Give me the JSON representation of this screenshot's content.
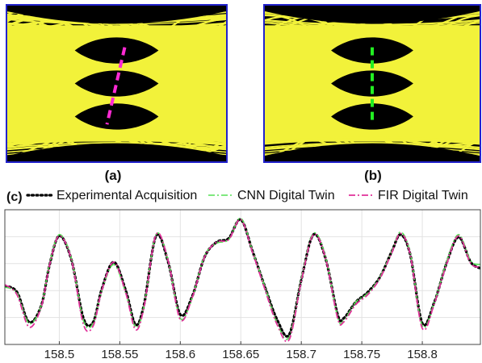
{
  "figure": {
    "panel_a_label": "(a)",
    "panel_b_label": "(b)",
    "panel_c_label": "(c)"
  },
  "colors": {
    "eye_trace": "#f2f23a",
    "eye_background": "#000000",
    "eye_frame": "#2222cc",
    "experimental": "#000000",
    "cnn": "#55e055",
    "fir": "#e0309a",
    "marker_a": "#ff2ad4",
    "marker_b": "#22ee22"
  },
  "chart_data": [
    {
      "type": "eye-diagram",
      "panel": "(a)",
      "openings": 3,
      "marker_style": "tilted dashed line"
    },
    {
      "type": "eye-diagram",
      "panel": "(b)",
      "openings": 3,
      "marker_style": "vertical dashed line"
    },
    {
      "type": "line",
      "panel": "(c)",
      "title": "",
      "xlabel": "",
      "ylabel": "",
      "xlim": [
        158.455,
        158.848
      ],
      "ylim": [
        0.0,
        1.0
      ],
      "xticks": [
        158.5,
        158.55,
        158.6,
        158.65,
        158.7,
        158.75,
        158.8
      ],
      "xtick_labels": [
        "158.5",
        "158.55",
        "158.6",
        "158.65",
        "158.7",
        "158.75",
        "158.8"
      ],
      "grid": true,
      "legend_position": "top",
      "series": [
        {
          "name": "Experimental Acquisition",
          "style": "dotted",
          "x": [
            158.455,
            158.465,
            158.475,
            158.485,
            158.492,
            158.5,
            158.51,
            158.52,
            158.528,
            158.535,
            158.545,
            158.555,
            158.563,
            158.57,
            158.58,
            158.59,
            158.6,
            158.61,
            158.62,
            158.63,
            158.64,
            158.65,
            158.66,
            158.67,
            158.68,
            158.69,
            158.7,
            158.71,
            158.72,
            158.73,
            158.735,
            158.745,
            158.755,
            158.765,
            158.775,
            158.782,
            158.79,
            158.8,
            158.81,
            158.82,
            158.83,
            158.84,
            158.848
          ],
          "y": [
            0.43,
            0.38,
            0.14,
            0.27,
            0.6,
            0.83,
            0.64,
            0.17,
            0.14,
            0.4,
            0.62,
            0.39,
            0.12,
            0.28,
            0.83,
            0.62,
            0.2,
            0.35,
            0.66,
            0.78,
            0.81,
            0.96,
            0.7,
            0.42,
            0.16,
            0.04,
            0.48,
            0.84,
            0.65,
            0.2,
            0.17,
            0.3,
            0.38,
            0.5,
            0.71,
            0.84,
            0.68,
            0.13,
            0.3,
            0.61,
            0.82,
            0.62,
            0.57
          ]
        },
        {
          "name": "CNN Digital Twin",
          "style": "dash-dot",
          "x": [
            158.455,
            158.465,
            158.475,
            158.485,
            158.492,
            158.5,
            158.51,
            158.52,
            158.528,
            158.535,
            158.545,
            158.555,
            158.563,
            158.57,
            158.58,
            158.59,
            158.6,
            158.61,
            158.62,
            158.63,
            158.64,
            158.65,
            158.66,
            158.67,
            158.68,
            158.69,
            158.7,
            158.71,
            158.72,
            158.73,
            158.735,
            158.745,
            158.755,
            158.765,
            158.775,
            158.782,
            158.79,
            158.8,
            158.81,
            158.82,
            158.83,
            158.84,
            158.848
          ],
          "y": [
            0.42,
            0.37,
            0.13,
            0.27,
            0.61,
            0.84,
            0.65,
            0.15,
            0.13,
            0.39,
            0.6,
            0.37,
            0.1,
            0.27,
            0.84,
            0.63,
            0.17,
            0.34,
            0.67,
            0.77,
            0.8,
            0.97,
            0.7,
            0.42,
            0.13,
            0.02,
            0.49,
            0.85,
            0.66,
            0.18,
            0.15,
            0.3,
            0.37,
            0.5,
            0.71,
            0.86,
            0.69,
            0.11,
            0.3,
            0.62,
            0.84,
            0.63,
            0.6
          ]
        },
        {
          "name": "FIR Digital Twin",
          "style": "dash-dot",
          "x": [
            158.455,
            158.465,
            158.475,
            158.485,
            158.492,
            158.5,
            158.51,
            158.52,
            158.528,
            158.535,
            158.545,
            158.555,
            158.563,
            158.57,
            158.58,
            158.59,
            158.6,
            158.61,
            158.62,
            158.63,
            158.64,
            158.65,
            158.66,
            158.67,
            158.68,
            158.69,
            158.7,
            158.71,
            158.72,
            158.73,
            158.735,
            158.745,
            158.755,
            158.765,
            158.775,
            158.782,
            158.79,
            158.8,
            158.81,
            158.82,
            158.83,
            158.84,
            158.848
          ],
          "y": [
            0.44,
            0.36,
            0.1,
            0.26,
            0.6,
            0.83,
            0.64,
            0.12,
            0.11,
            0.39,
            0.62,
            0.37,
            0.08,
            0.26,
            0.84,
            0.63,
            0.16,
            0.34,
            0.66,
            0.78,
            0.8,
            0.96,
            0.69,
            0.4,
            0.12,
            0.0,
            0.47,
            0.84,
            0.65,
            0.17,
            0.14,
            0.28,
            0.36,
            0.49,
            0.7,
            0.85,
            0.68,
            0.09,
            0.29,
            0.6,
            0.83,
            0.61,
            0.58
          ]
        }
      ]
    }
  ]
}
